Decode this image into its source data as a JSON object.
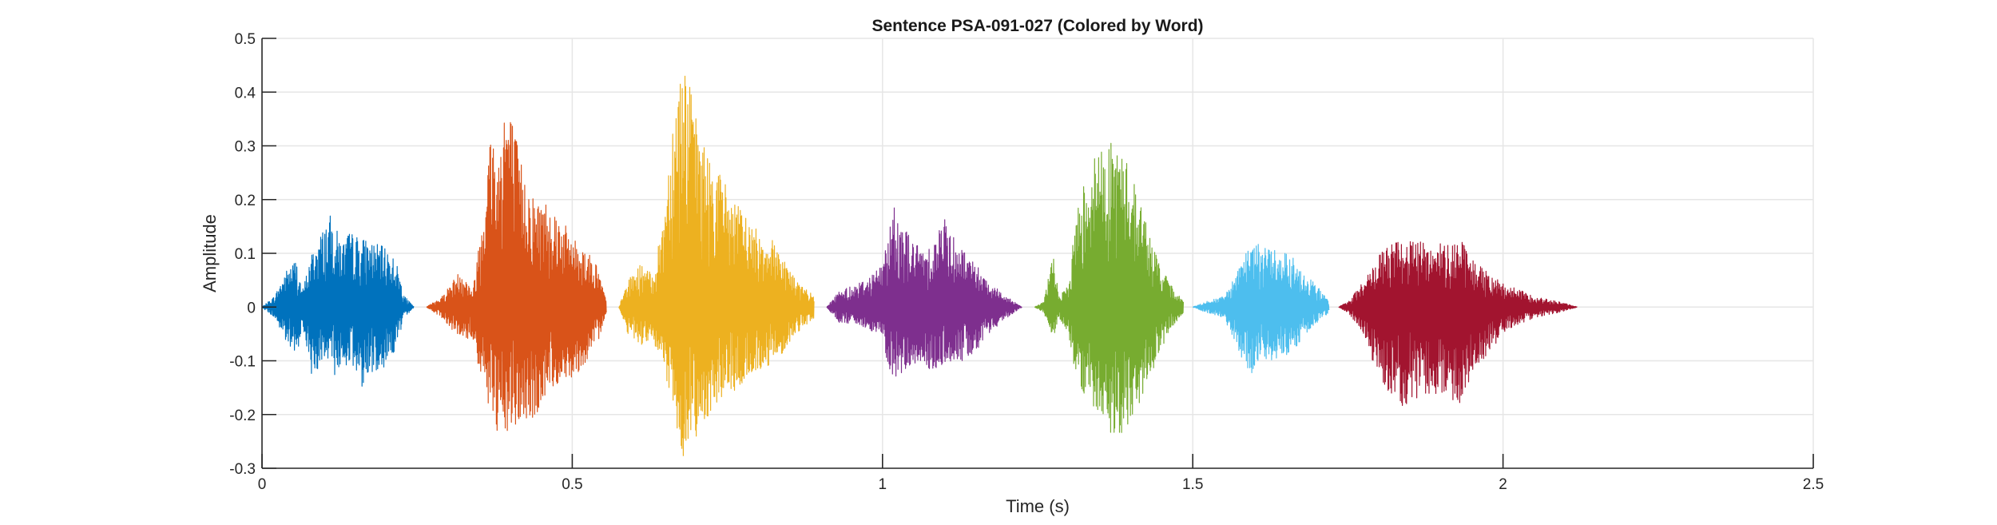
{
  "chart_data": {
    "type": "line",
    "title": "Sentence PSA-091-027 (Colored by Word)",
    "xlabel": "Time (s)",
    "ylabel": "Amplitude",
    "xlim": [
      0,
      2.5
    ],
    "ylim": [
      -0.3,
      0.5
    ],
    "xticks": [
      0,
      0.5,
      1,
      1.5,
      2,
      2.5
    ],
    "xtick_labels": [
      "0",
      "0.5",
      "1",
      "1.5",
      "2",
      "2.5"
    ],
    "yticks": [
      -0.3,
      -0.2,
      -0.1,
      0,
      0.1,
      0.2,
      0.3,
      0.4,
      0.5
    ],
    "ytick_labels": [
      "-0.3",
      "-0.2",
      "-0.1",
      "0",
      "0.1",
      "0.2",
      "0.3",
      "0.4",
      "0.5"
    ],
    "grid": true,
    "legend": "none",
    "segments": [
      {
        "color": "#0072BD",
        "t_start": 0.0,
        "t_end": 0.245,
        "envelope": [
          [
            0.0,
            0.0,
            0.0
          ],
          [
            0.02,
            0.02,
            -0.02
          ],
          [
            0.04,
            0.07,
            -0.07
          ],
          [
            0.055,
            0.09,
            -0.1
          ],
          [
            0.065,
            0.03,
            -0.03
          ],
          [
            0.08,
            0.1,
            -0.13
          ],
          [
            0.1,
            0.15,
            -0.1
          ],
          [
            0.11,
            0.17,
            -0.13
          ],
          [
            0.13,
            0.12,
            -0.12
          ],
          [
            0.14,
            0.14,
            -0.1
          ],
          [
            0.16,
            0.13,
            -0.15
          ],
          [
            0.18,
            0.12,
            -0.12
          ],
          [
            0.2,
            0.11,
            -0.11
          ],
          [
            0.215,
            0.09,
            -0.08
          ],
          [
            0.23,
            0.02,
            -0.02
          ],
          [
            0.245,
            0.0,
            0.0
          ]
        ]
      },
      {
        "color": "#D95319",
        "t_start": 0.265,
        "t_end": 0.555,
        "envelope": [
          [
            0.265,
            0.0,
            0.0
          ],
          [
            0.29,
            0.02,
            -0.02
          ],
          [
            0.32,
            0.07,
            -0.06
          ],
          [
            0.34,
            0.03,
            -0.06
          ],
          [
            0.355,
            0.18,
            -0.15
          ],
          [
            0.37,
            0.35,
            -0.2
          ],
          [
            0.38,
            0.27,
            -0.26
          ],
          [
            0.39,
            0.4,
            -0.25
          ],
          [
            0.4,
            0.37,
            -0.23
          ],
          [
            0.42,
            0.26,
            -0.22
          ],
          [
            0.44,
            0.2,
            -0.21
          ],
          [
            0.46,
            0.2,
            -0.16
          ],
          [
            0.48,
            0.17,
            -0.14
          ],
          [
            0.5,
            0.13,
            -0.13
          ],
          [
            0.52,
            0.11,
            -0.11
          ],
          [
            0.54,
            0.08,
            -0.07
          ],
          [
            0.555,
            0.01,
            -0.01
          ]
        ]
      },
      {
        "color": "#EDB120",
        "t_start": 0.575,
        "t_end": 0.89,
        "envelope": [
          [
            0.575,
            0.0,
            0.0
          ],
          [
            0.59,
            0.05,
            -0.05
          ],
          [
            0.61,
            0.08,
            -0.07
          ],
          [
            0.63,
            0.06,
            -0.07
          ],
          [
            0.645,
            0.15,
            -0.1
          ],
          [
            0.66,
            0.34,
            -0.18
          ],
          [
            0.67,
            0.43,
            -0.25
          ],
          [
            0.68,
            0.47,
            -0.28
          ],
          [
            0.7,
            0.35,
            -0.24
          ],
          [
            0.72,
            0.28,
            -0.2
          ],
          [
            0.74,
            0.25,
            -0.17
          ],
          [
            0.76,
            0.2,
            -0.16
          ],
          [
            0.8,
            0.14,
            -0.12
          ],
          [
            0.83,
            0.12,
            -0.1
          ],
          [
            0.86,
            0.05,
            -0.05
          ],
          [
            0.89,
            0.02,
            -0.02
          ]
        ]
      },
      {
        "color": "#7E2F8E",
        "t_start": 0.91,
        "t_end": 1.225,
        "envelope": [
          [
            0.91,
            0.0,
            0.0
          ],
          [
            0.93,
            0.03,
            -0.03
          ],
          [
            0.95,
            0.04,
            -0.03
          ],
          [
            0.97,
            0.05,
            -0.04
          ],
          [
            1.0,
            0.08,
            -0.05
          ],
          [
            1.01,
            0.15,
            -0.12
          ],
          [
            1.02,
            0.19,
            -0.14
          ],
          [
            1.04,
            0.14,
            -0.12
          ],
          [
            1.06,
            0.11,
            -0.1
          ],
          [
            1.08,
            0.12,
            -0.13
          ],
          [
            1.1,
            0.17,
            -0.11
          ],
          [
            1.12,
            0.12,
            -0.1
          ],
          [
            1.14,
            0.1,
            -0.1
          ],
          [
            1.17,
            0.05,
            -0.05
          ],
          [
            1.2,
            0.02,
            -0.02
          ],
          [
            1.225,
            0.0,
            0.0
          ]
        ]
      },
      {
        "color": "#77AC30",
        "t_start": 1.245,
        "t_end": 1.485,
        "envelope": [
          [
            1.245,
            0.0,
            0.0
          ],
          [
            1.26,
            0.01,
            -0.01
          ],
          [
            1.275,
            0.1,
            -0.06
          ],
          [
            1.285,
            0.02,
            -0.02
          ],
          [
            1.3,
            0.04,
            -0.05
          ],
          [
            1.31,
            0.16,
            -0.12
          ],
          [
            1.325,
            0.24,
            -0.17
          ],
          [
            1.34,
            0.28,
            -0.19
          ],
          [
            1.36,
            0.31,
            -0.23
          ],
          [
            1.38,
            0.3,
            -0.24
          ],
          [
            1.4,
            0.26,
            -0.22
          ],
          [
            1.42,
            0.18,
            -0.16
          ],
          [
            1.44,
            0.1,
            -0.11
          ],
          [
            1.46,
            0.05,
            -0.05
          ],
          [
            1.485,
            0.01,
            -0.01
          ]
        ]
      },
      {
        "color": "#4DBEEE",
        "t_start": 1.5,
        "t_end": 1.72,
        "envelope": [
          [
            1.5,
            0.0,
            0.0
          ],
          [
            1.52,
            0.01,
            -0.01
          ],
          [
            1.55,
            0.02,
            -0.02
          ],
          [
            1.57,
            0.06,
            -0.07
          ],
          [
            1.59,
            0.11,
            -0.13
          ],
          [
            1.61,
            0.12,
            -0.1
          ],
          [
            1.63,
            0.11,
            -0.1
          ],
          [
            1.65,
            0.11,
            -0.09
          ],
          [
            1.67,
            0.08,
            -0.07
          ],
          [
            1.7,
            0.04,
            -0.03
          ],
          [
            1.72,
            0.01,
            -0.01
          ]
        ]
      },
      {
        "color": "#A2142F",
        "t_start": 1.735,
        "t_end": 2.12,
        "envelope": [
          [
            1.735,
            0.0,
            0.0
          ],
          [
            1.75,
            0.01,
            -0.01
          ],
          [
            1.77,
            0.04,
            -0.04
          ],
          [
            1.79,
            0.08,
            -0.1
          ],
          [
            1.81,
            0.11,
            -0.15
          ],
          [
            1.84,
            0.13,
            -0.19
          ],
          [
            1.87,
            0.12,
            -0.17
          ],
          [
            1.9,
            0.12,
            -0.16
          ],
          [
            1.93,
            0.13,
            -0.18
          ],
          [
            1.95,
            0.09,
            -0.13
          ],
          [
            1.98,
            0.06,
            -0.08
          ],
          [
            2.01,
            0.04,
            -0.04
          ],
          [
            2.05,
            0.02,
            -0.02
          ],
          [
            2.09,
            0.01,
            -0.01
          ],
          [
            2.12,
            0.0,
            0.0
          ]
        ]
      }
    ]
  }
}
